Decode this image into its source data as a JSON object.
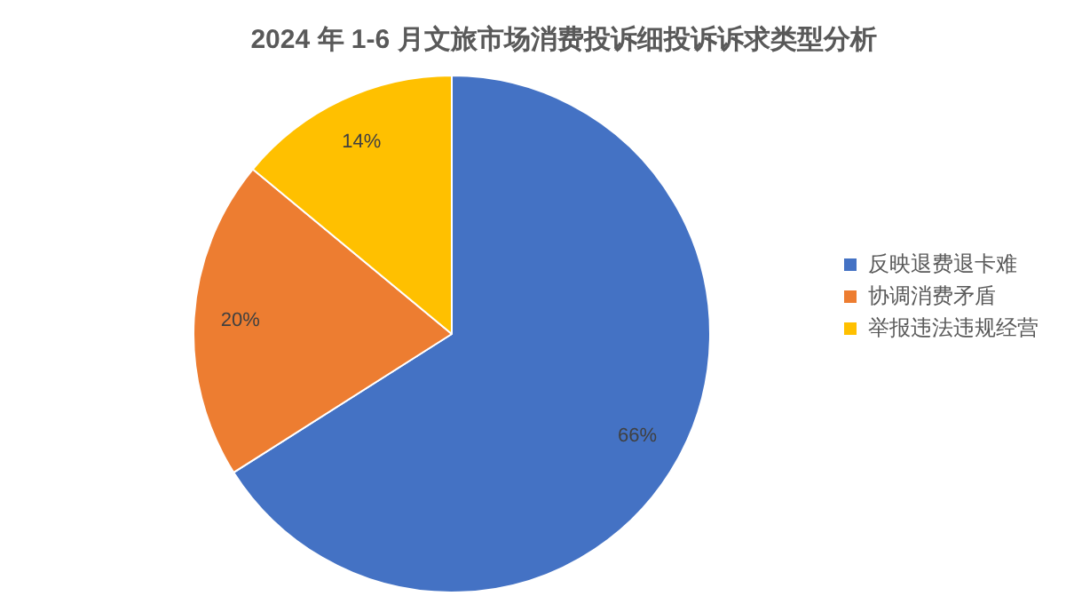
{
  "chart_data": {
    "type": "pie",
    "title": "2024 年 1-6 月文旅市场消费投诉细投诉诉求类型分析",
    "categories": [
      "反映退费退卡难",
      "协调消费矛盾",
      "举报违法违规经营"
    ],
    "values": [
      66,
      20,
      14
    ],
    "value_labels": [
      "66%",
      "20%",
      "14%"
    ],
    "colors": [
      "#4472c4",
      "#ed7d31",
      "#ffc000"
    ],
    "legend": "right"
  }
}
